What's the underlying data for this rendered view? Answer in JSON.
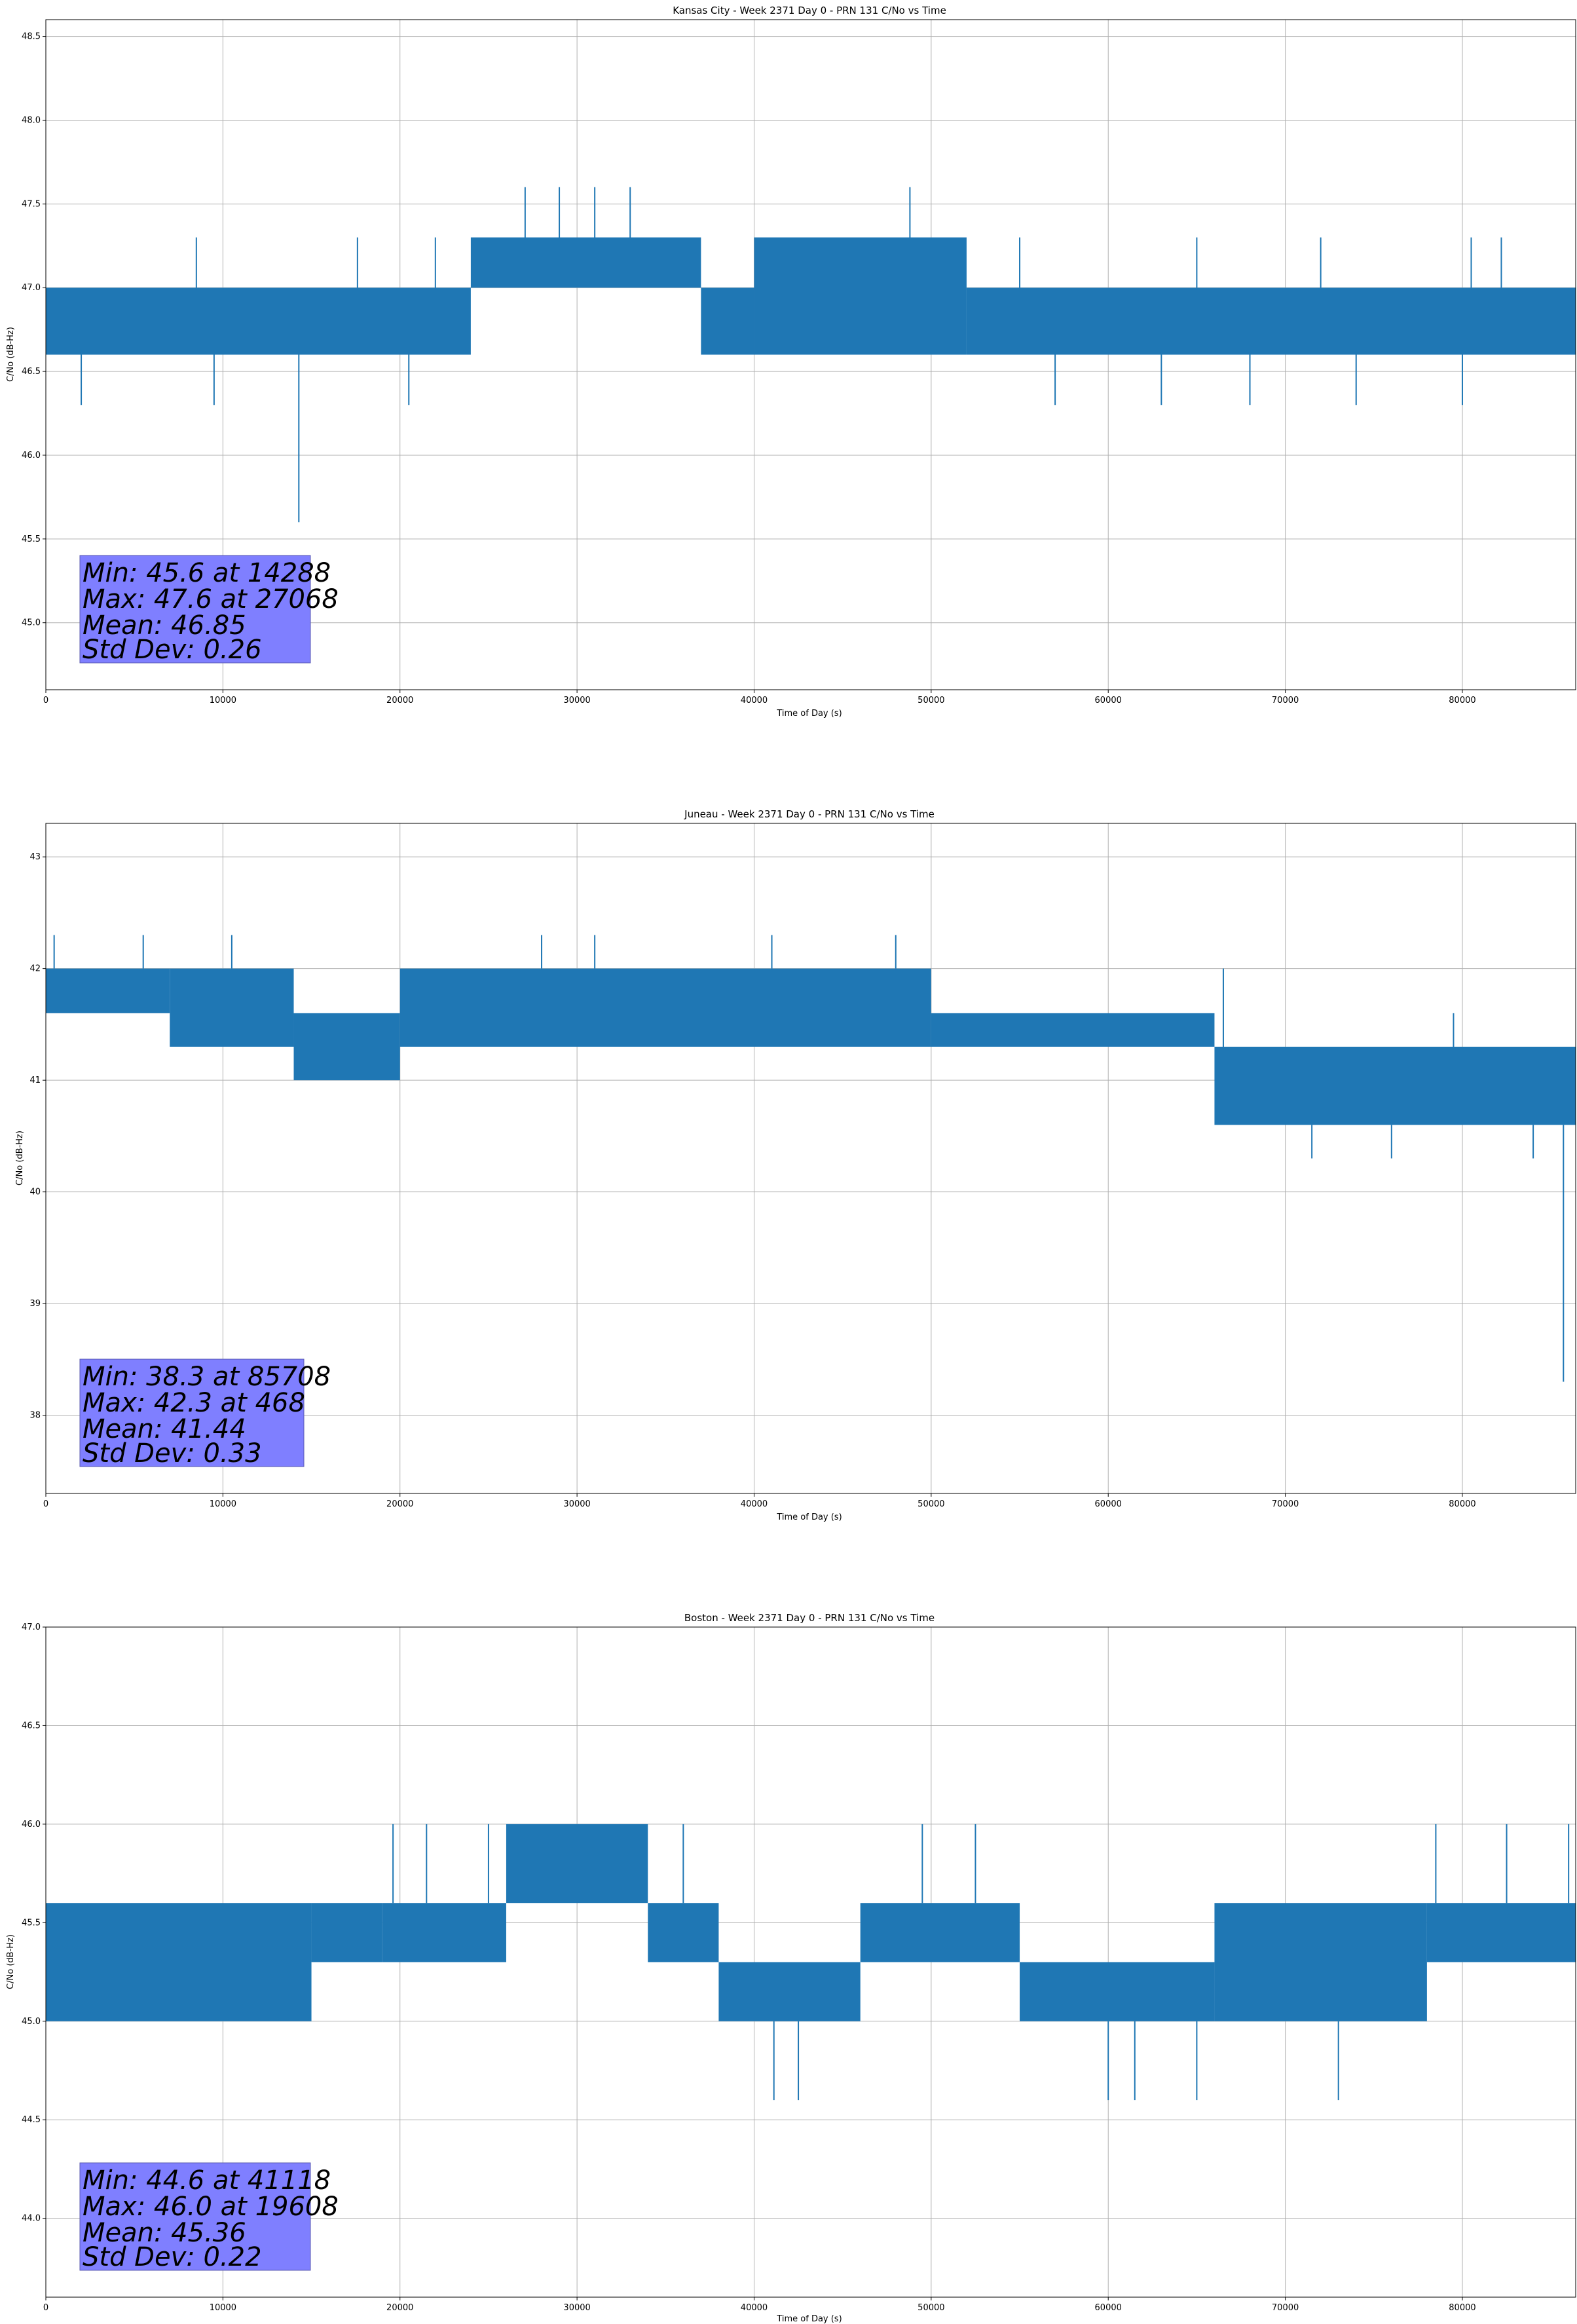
{
  "figure": {
    "series_color": "#1f77b4",
    "stats_box_color": "#7f7fff"
  },
  "chart_data": [
    {
      "type": "line",
      "title": "Kansas City - Week 2371 Day 0 - PRN 131 C/No vs Time",
      "xlabel": "Time of Day (s)",
      "ylabel": "C/No (dB-Hz)",
      "xlim": [
        0,
        86400
      ],
      "ylim": [
        44.6,
        48.6
      ],
      "grid": true,
      "x_ticks": [
        0,
        10000,
        20000,
        30000,
        40000,
        50000,
        60000,
        70000,
        80000
      ],
      "x_tick_labels": [
        "0",
        "10000",
        "20000",
        "30000",
        "40000",
        "50000",
        "60000",
        "70000",
        "80000"
      ],
      "y_ticks": [
        45.0,
        45.5,
        46.0,
        46.5,
        47.0,
        47.5,
        48.0,
        48.5
      ],
      "y_tick_labels": [
        "45.0",
        "45.5",
        "46.0",
        "46.5",
        "47.0",
        "47.5",
        "48.0",
        "48.5"
      ],
      "band_segments": [
        {
          "x": [
            0,
            24000
          ],
          "low": 46.6,
          "high": 47.0
        },
        {
          "x": [
            24000,
            37000
          ],
          "low": 47.0,
          "high": 47.3
        },
        {
          "x": [
            37000,
            40000
          ],
          "low": 46.6,
          "high": 47.0
        },
        {
          "x": [
            40000,
            52000
          ],
          "low": 46.6,
          "high": 47.3
        },
        {
          "x": [
            52000,
            86400
          ],
          "low": 46.6,
          "high": 47.0
        }
      ],
      "spikes": [
        {
          "x": 14288,
          "y": 45.6
        },
        {
          "x": 27068,
          "y": 47.6
        },
        {
          "x": 29000,
          "y": 47.6
        },
        {
          "x": 31000,
          "y": 47.6
        },
        {
          "x": 33000,
          "y": 47.6
        },
        {
          "x": 48800,
          "y": 47.6
        },
        {
          "x": 8500,
          "y": 47.3
        },
        {
          "x": 17600,
          "y": 47.3
        },
        {
          "x": 22000,
          "y": 47.3
        },
        {
          "x": 55000,
          "y": 47.3
        },
        {
          "x": 65000,
          "y": 47.3
        },
        {
          "x": 72000,
          "y": 47.3
        },
        {
          "x": 80500,
          "y": 47.3
        },
        {
          "x": 82200,
          "y": 47.3
        },
        {
          "x": 2000,
          "y": 46.3
        },
        {
          "x": 9500,
          "y": 46.3
        },
        {
          "x": 20500,
          "y": 46.3
        },
        {
          "x": 57000,
          "y": 46.3
        },
        {
          "x": 63000,
          "y": 46.3
        },
        {
          "x": 68000,
          "y": 46.3
        },
        {
          "x": 74000,
          "y": 46.3
        },
        {
          "x": 80000,
          "y": 46.3
        }
      ],
      "stats": [
        "Min: 45.6 at 14288",
        "Max: 47.6 at 27068",
        "Mean: 46.85",
        "Std Dev: 0.26"
      ]
    },
    {
      "type": "line",
      "title": "Juneau - Week 2371 Day 0 - PRN 131 C/No vs Time",
      "xlabel": "Time of Day (s)",
      "ylabel": "C/No (dB-Hz)",
      "xlim": [
        0,
        86400
      ],
      "ylim": [
        37.3,
        43.3
      ],
      "grid": true,
      "x_ticks": [
        0,
        10000,
        20000,
        30000,
        40000,
        50000,
        60000,
        70000,
        80000
      ],
      "x_tick_labels": [
        "0",
        "10000",
        "20000",
        "30000",
        "40000",
        "50000",
        "60000",
        "70000",
        "80000"
      ],
      "y_ticks": [
        38,
        39,
        40,
        41,
        42,
        43
      ],
      "y_tick_labels": [
        "38",
        "39",
        "40",
        "41",
        "42",
        "43"
      ],
      "band_segments": [
        {
          "x": [
            0,
            7000
          ],
          "low": 41.6,
          "high": 42.0
        },
        {
          "x": [
            7000,
            14000
          ],
          "low": 41.3,
          "high": 42.0
        },
        {
          "x": [
            14000,
            20000
          ],
          "low": 41.0,
          "high": 41.6
        },
        {
          "x": [
            20000,
            50000
          ],
          "low": 41.3,
          "high": 42.0
        },
        {
          "x": [
            50000,
            66000
          ],
          "low": 41.3,
          "high": 41.6
        },
        {
          "x": [
            66000,
            86400
          ],
          "low": 40.6,
          "high": 41.3
        }
      ],
      "spikes": [
        {
          "x": 468,
          "y": 42.3
        },
        {
          "x": 5500,
          "y": 42.3
        },
        {
          "x": 10500,
          "y": 42.3
        },
        {
          "x": 28000,
          "y": 42.3
        },
        {
          "x": 31000,
          "y": 42.3
        },
        {
          "x": 41000,
          "y": 42.3
        },
        {
          "x": 48000,
          "y": 42.3
        },
        {
          "x": 66500,
          "y": 42.0
        },
        {
          "x": 79500,
          "y": 41.6
        },
        {
          "x": 71500,
          "y": 40.3
        },
        {
          "x": 76000,
          "y": 40.3
        },
        {
          "x": 84000,
          "y": 40.3
        },
        {
          "x": 85708,
          "y": 38.3
        }
      ],
      "stats": [
        "Min: 38.3 at 85708",
        "Max: 42.3 at 468",
        "Mean: 41.44",
        "Std Dev: 0.33"
      ]
    },
    {
      "type": "line",
      "title": "Boston - Week 2371 Day 0 - PRN 131 C/No vs Time",
      "xlabel": "Time of Day (s)",
      "ylabel": "C/No (dB-Hz)",
      "xlim": [
        0,
        86400
      ],
      "ylim": [
        43.6,
        47.0
      ],
      "grid": true,
      "x_ticks": [
        0,
        10000,
        20000,
        30000,
        40000,
        50000,
        60000,
        70000,
        80000
      ],
      "x_tick_labels": [
        "0",
        "10000",
        "20000",
        "30000",
        "40000",
        "50000",
        "60000",
        "70000",
        "80000"
      ],
      "y_ticks": [
        44.0,
        44.5,
        45.0,
        45.5,
        46.0,
        46.5,
        47.0
      ],
      "y_tick_labels": [
        "44.0",
        "44.5",
        "45.0",
        "45.5",
        "46.0",
        "46.5",
        "47.0"
      ],
      "band_segments": [
        {
          "x": [
            0,
            15000
          ],
          "low": 45.0,
          "high": 45.6
        },
        {
          "x": [
            15000,
            19000
          ],
          "low": 45.3,
          "high": 45.6
        },
        {
          "x": [
            19000,
            26000
          ],
          "low": 45.3,
          "high": 45.6
        },
        {
          "x": [
            26000,
            34000
          ],
          "low": 45.6,
          "high": 46.0
        },
        {
          "x": [
            34000,
            38000
          ],
          "low": 45.3,
          "high": 45.6
        },
        {
          "x": [
            38000,
            46000
          ],
          "low": 45.0,
          "high": 45.3
        },
        {
          "x": [
            46000,
            55000
          ],
          "low": 45.3,
          "high": 45.6
        },
        {
          "x": [
            55000,
            66000
          ],
          "low": 45.0,
          "high": 45.3
        },
        {
          "x": [
            66000,
            78000
          ],
          "low": 45.0,
          "high": 45.6
        },
        {
          "x": [
            78000,
            86400
          ],
          "low": 45.3,
          "high": 45.6
        }
      ],
      "spikes": [
        {
          "x": 19608,
          "y": 46.0
        },
        {
          "x": 21500,
          "y": 46.0
        },
        {
          "x": 25000,
          "y": 46.0
        },
        {
          "x": 36000,
          "y": 46.0
        },
        {
          "x": 49500,
          "y": 46.0
        },
        {
          "x": 52500,
          "y": 46.0
        },
        {
          "x": 78500,
          "y": 46.0
        },
        {
          "x": 82500,
          "y": 46.0
        },
        {
          "x": 86000,
          "y": 46.0
        },
        {
          "x": 41118,
          "y": 44.6
        },
        {
          "x": 42500,
          "y": 44.6
        },
        {
          "x": 60000,
          "y": 44.6
        },
        {
          "x": 61500,
          "y": 44.6
        },
        {
          "x": 65000,
          "y": 44.6
        },
        {
          "x": 73000,
          "y": 44.6
        }
      ],
      "stats": [
        "Min: 44.6 at 41118",
        "Max: 46.0 at 19608",
        "Mean: 45.36",
        "Std Dev: 0.22"
      ]
    }
  ]
}
